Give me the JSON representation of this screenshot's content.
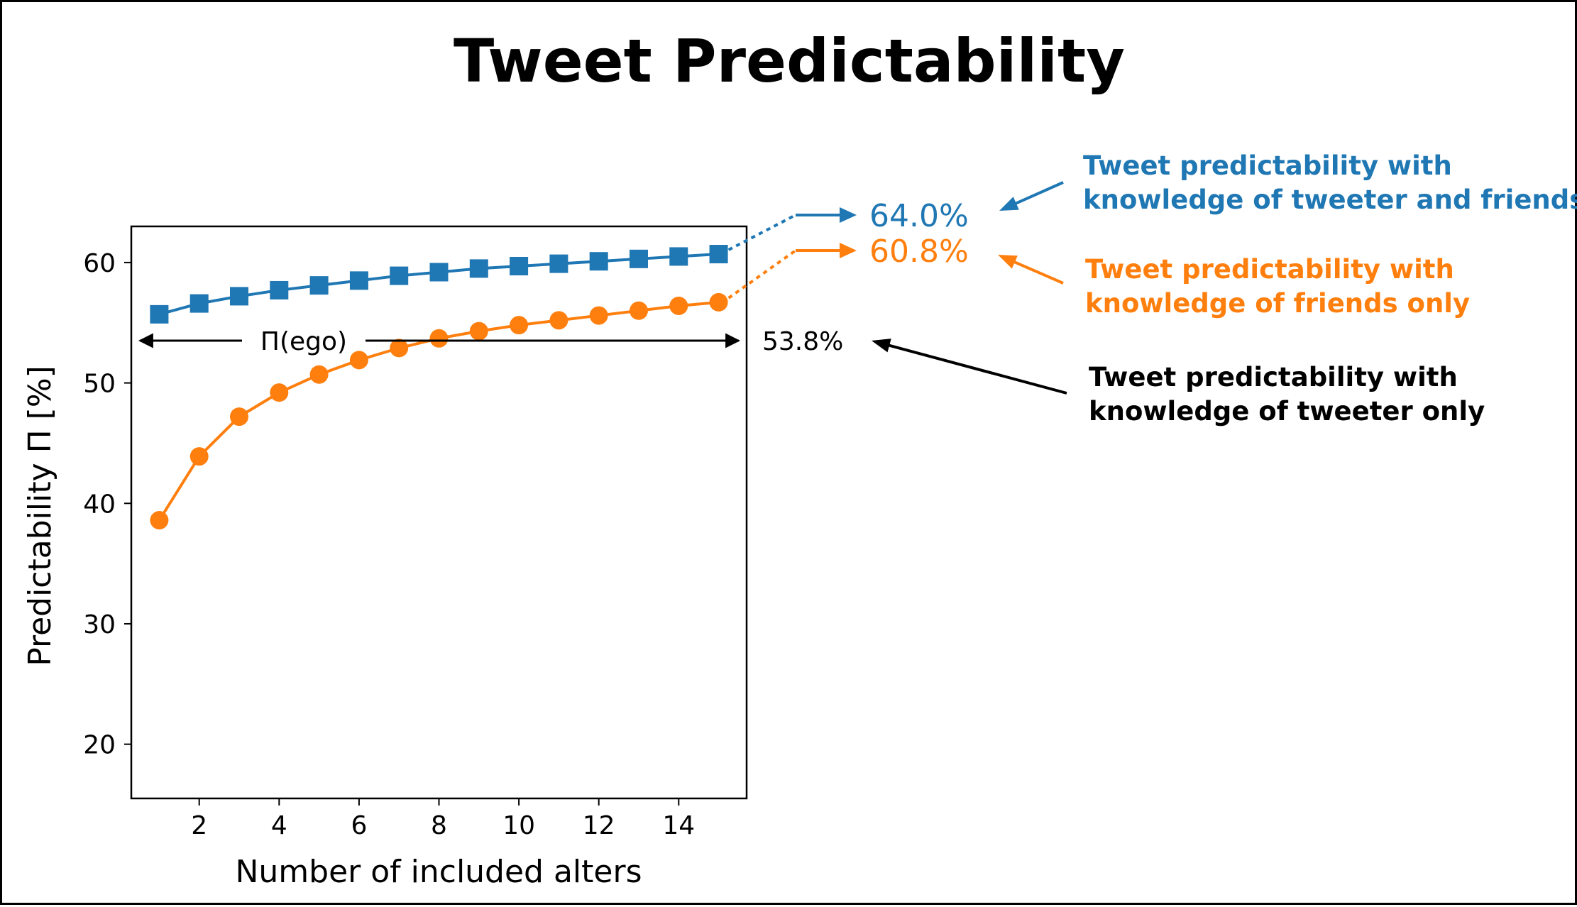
{
  "chart_data": {
    "type": "line",
    "title": "Tweet Predictability",
    "xlabel": "Number of included alters",
    "ylabel": "Predictability Π [%]",
    "xlim": [
      0.3,
      15.7
    ],
    "ylim": [
      15.5,
      63.0
    ],
    "xticks": [
      2,
      4,
      6,
      8,
      10,
      12,
      14
    ],
    "yticks": [
      20,
      30,
      40,
      50,
      60
    ],
    "x": [
      1,
      2,
      3,
      4,
      5,
      6,
      7,
      8,
      9,
      10,
      11,
      12,
      13,
      14,
      15
    ],
    "series": [
      {
        "name": "Tweet predictability with knowledge of tweeter and friends",
        "color": "#1f77b4",
        "marker": "square",
        "values": [
          55.7,
          56.6,
          57.2,
          57.7,
          58.1,
          58.5,
          58.9,
          59.2,
          59.5,
          59.7,
          59.9,
          60.1,
          60.3,
          60.5,
          60.7
        ],
        "limit_label": "64.0%",
        "limit_value": 64.0
      },
      {
        "name": "Tweet predictability with knowledge of friends only",
        "color": "#ff7f0e",
        "marker": "circle",
        "values": [
          38.6,
          43.9,
          47.2,
          49.2,
          50.7,
          51.9,
          52.9,
          53.7,
          54.3,
          54.8,
          55.2,
          55.6,
          56.0,
          56.4,
          56.7
        ],
        "limit_label": "60.8%",
        "limit_value": 60.8
      }
    ],
    "reference": {
      "label": "Π(ego)",
      "value": 53.8,
      "value_label": "53.8%",
      "color": "#000000"
    },
    "annotations": [
      {
        "line1": "Tweet predictability with",
        "line2": "knowledge of tweeter and friends",
        "color": "#1f77b4"
      },
      {
        "line1": "Tweet predictability with",
        "line2": "knowledge of friends only",
        "color": "#ff7f0e"
      },
      {
        "line1": "Tweet predictability with",
        "line2": "knowledge of tweeter only",
        "color": "#000000"
      }
    ]
  }
}
